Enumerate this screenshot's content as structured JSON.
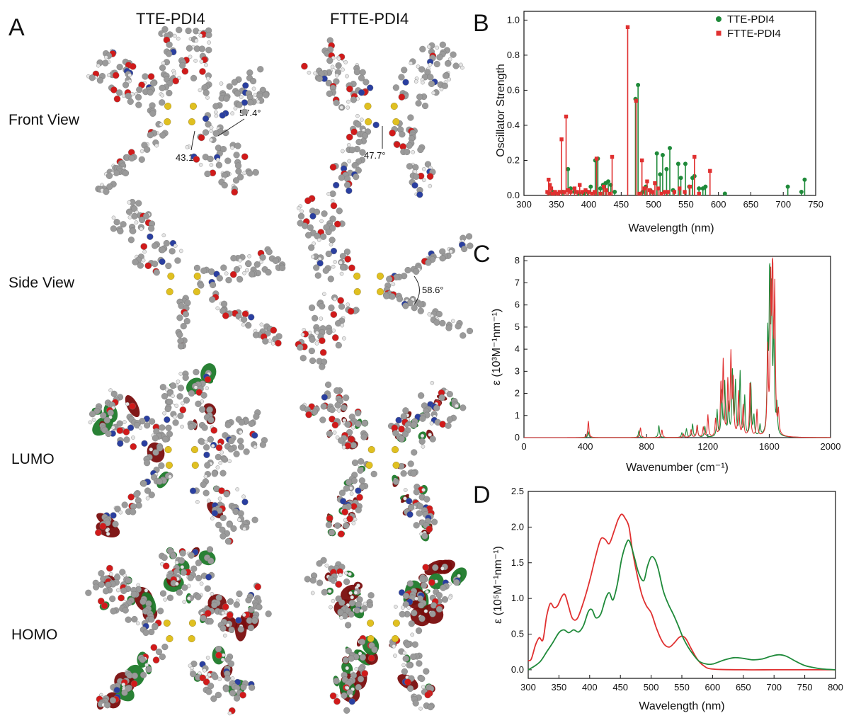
{
  "panel_a": {
    "letter": "A",
    "columns": [
      "TTE-PDI4",
      "FTTE-PDI4"
    ],
    "rows": [
      "Front View",
      "Side View",
      "LUMO",
      "HOMO"
    ],
    "angles": {
      "front_tte_1": "57.4°",
      "front_tte_2": "43.1°",
      "front_ftte": "47.7°",
      "side_ftte": "58.6°"
    },
    "colors": {
      "carbon": "#9a9a9a",
      "hydrogen": "#e6e6e6",
      "oxygen": "#d11a1a",
      "nitrogen": "#2a3fa0",
      "sulfur": "#e0c020",
      "orbital_pos": "#7a0d0d",
      "orbital_neg": "#1d7a2a"
    }
  },
  "chart_data": [
    {
      "panel": "B",
      "type": "stem",
      "xlabel": "Wavelength (nm)",
      "ylabel": "Oscillator Strength",
      "xlim": [
        300,
        750
      ],
      "ylim": [
        0,
        1.05
      ],
      "xticks": [
        300,
        350,
        400,
        450,
        500,
        550,
        600,
        650,
        700,
        750
      ],
      "yticks": [
        0.0,
        0.2,
        0.4,
        0.6,
        0.8,
        1.0
      ],
      "series": [
        {
          "name": "TTE-PDI4",
          "color": "#1f8a3a",
          "marker": "circle",
          "points": [
            [
              340,
              0.01
            ],
            [
              345,
              0.02
            ],
            [
              350,
              0.01
            ],
            [
              360,
              0.02
            ],
            [
              368,
              0.15
            ],
            [
              372,
              0.04
            ],
            [
              378,
              0.02
            ],
            [
              385,
              0.01
            ],
            [
              392,
              0.01
            ],
            [
              398,
              0.02
            ],
            [
              403,
              0.05
            ],
            [
              410,
              0.2
            ],
            [
              414,
              0.21
            ],
            [
              418,
              0.04
            ],
            [
              422,
              0.06
            ],
            [
              426,
              0.07
            ],
            [
              430,
              0.08
            ],
            [
              434,
              0.06
            ],
            [
              440,
              0.02
            ],
            [
              472,
              0.55
            ],
            [
              476,
              0.63
            ],
            [
              483,
              0.02
            ],
            [
              488,
              0.05
            ],
            [
              495,
              0.03
            ],
            [
              505,
              0.24
            ],
            [
              510,
              0.12
            ],
            [
              514,
              0.23
            ],
            [
              520,
              0.15
            ],
            [
              525,
              0.27
            ],
            [
              530,
              0.03
            ],
            [
              538,
              0.18
            ],
            [
              542,
              0.1
            ],
            [
              549,
              0.18
            ],
            [
              555,
              0.05
            ],
            [
              560,
              0.1
            ],
            [
              563,
              0.11
            ],
            [
              570,
              0.04
            ],
            [
              576,
              0.04
            ],
            [
              580,
              0.05
            ],
            [
              610,
              0.01
            ],
            [
              707,
              0.05
            ],
            [
              728,
              0.02
            ],
            [
              733,
              0.09
            ]
          ]
        },
        {
          "name": "FTTE-PDI4",
          "color": "#e03030",
          "marker": "square",
          "points": [
            [
              336,
              0.02
            ],
            [
              338,
              0.09
            ],
            [
              340,
              0.06
            ],
            [
              342,
              0.04
            ],
            [
              345,
              0.01
            ],
            [
              348,
              0.02
            ],
            [
              352,
              0.01
            ],
            [
              355,
              0.02
            ],
            [
              358,
              0.32
            ],
            [
              362,
              0.02
            ],
            [
              365,
              0.45
            ],
            [
              368,
              0.03
            ],
            [
              372,
              0.02
            ],
            [
              378,
              0.04
            ],
            [
              382,
              0.02
            ],
            [
              386,
              0.06
            ],
            [
              390,
              0.02
            ],
            [
              395,
              0.03
            ],
            [
              400,
              0.02
            ],
            [
              405,
              0.01
            ],
            [
              409,
              0.02
            ],
            [
              412,
              0.21
            ],
            [
              418,
              0.01
            ],
            [
              423,
              0.05
            ],
            [
              427,
              0.03
            ],
            [
              432,
              0.01
            ],
            [
              436,
              0.22
            ],
            [
              460,
              0.96
            ],
            [
              473,
              0.54
            ],
            [
              478,
              0.01
            ],
            [
              482,
              0.2
            ],
            [
              486,
              0.04
            ],
            [
              490,
              0.08
            ],
            [
              494,
              0.03
            ],
            [
              498,
              0.02
            ],
            [
              502,
              0.07
            ],
            [
              507,
              0.04
            ],
            [
              512,
              0.01
            ],
            [
              517,
              0.02
            ],
            [
              522,
              0.02
            ],
            [
              532,
              0.02
            ],
            [
              540,
              0.04
            ],
            [
              548,
              0.02
            ],
            [
              556,
              0.05
            ],
            [
              563,
              0.22
            ],
            [
              570,
              0.01
            ],
            [
              587,
              0.14
            ]
          ]
        }
      ],
      "legend_position": "top-right"
    },
    {
      "panel": "C",
      "type": "line",
      "xlabel": "Wavenumber (cm⁻¹)",
      "ylabel": "ε (10³M⁻¹nm⁻¹)",
      "xlim": [
        0,
        2000
      ],
      "ylim": [
        0,
        8.2
      ],
      "xticks": [
        0,
        400,
        800,
        1200,
        1600,
        2000
      ],
      "yticks": [
        0,
        1,
        2,
        3,
        4,
        5,
        6,
        7,
        8
      ],
      "series": [
        {
          "name": "",
          "color": "#1f8a3a",
          "peaks": [
            [
              420,
              0.25
            ],
            [
              750,
              0.3
            ],
            [
              880,
              0.55
            ],
            [
              1030,
              0.2
            ],
            [
              1060,
              0.4
            ],
            [
              1100,
              0.6
            ],
            [
              1130,
              0.55
            ],
            [
              1180,
              0.5
            ],
            [
              1260,
              1.2
            ],
            [
              1290,
              2.0
            ],
            [
              1310,
              2.4
            ],
            [
              1335,
              1.5
            ],
            [
              1360,
              2.9
            ],
            [
              1380,
              2.4
            ],
            [
              1410,
              2.9
            ],
            [
              1440,
              1.8
            ],
            [
              1480,
              2.4
            ],
            [
              1500,
              0.9
            ],
            [
              1540,
              0.5
            ],
            [
              1590,
              4.2
            ],
            [
              1603,
              6.8
            ],
            [
              1615,
              6.0
            ],
            [
              1630,
              4.5
            ],
            [
              1650,
              1.3
            ]
          ]
        },
        {
          "name": "",
          "color": "#e03030",
          "peaks": [
            [
              420,
              0.75
            ],
            [
              760,
              0.45
            ],
            [
              900,
              0.35
            ],
            [
              1040,
              0.15
            ],
            [
              1090,
              0.35
            ],
            [
              1130,
              0.55
            ],
            [
              1170,
              0.45
            ],
            [
              1200,
              1.0
            ],
            [
              1250,
              0.8
            ],
            [
              1285,
              2.3
            ],
            [
              1300,
              3.3
            ],
            [
              1330,
              2.4
            ],
            [
              1350,
              3.6
            ],
            [
              1365,
              2.5
            ],
            [
              1400,
              2.0
            ],
            [
              1430,
              1.4
            ],
            [
              1475,
              2.5
            ],
            [
              1520,
              1.2
            ],
            [
              1590,
              3.8
            ],
            [
              1610,
              6.4
            ],
            [
              1622,
              7.7
            ],
            [
              1636,
              6.2
            ],
            [
              1660,
              1.0
            ]
          ]
        }
      ]
    },
    {
      "panel": "D",
      "type": "line",
      "xlabel": "Wavelength (nm)",
      "ylabel": "ε (10⁵M⁻¹nm⁻¹)",
      "xlim": [
        300,
        800
      ],
      "ylim": [
        -0.12,
        2.5
      ],
      "xticks": [
        300,
        350,
        400,
        450,
        500,
        550,
        600,
        650,
        700,
        750,
        800
      ],
      "yticks": [
        0.0,
        0.5,
        1.0,
        1.5,
        2.0,
        2.5
      ],
      "series": [
        {
          "name": "",
          "color": "#e03030",
          "points": [
            [
              300,
              0.13
            ],
            [
              305,
              0.15
            ],
            [
              312,
              0.35
            ],
            [
              318,
              0.45
            ],
            [
              324,
              0.42
            ],
            [
              330,
              0.75
            ],
            [
              336,
              0.93
            ],
            [
              342,
              0.87
            ],
            [
              348,
              0.9
            ],
            [
              355,
              1.03
            ],
            [
              360,
              1.05
            ],
            [
              366,
              0.88
            ],
            [
              372,
              0.72
            ],
            [
              380,
              0.72
            ],
            [
              390,
              0.95
            ],
            [
              400,
              1.25
            ],
            [
              410,
              1.6
            ],
            [
              418,
              1.83
            ],
            [
              425,
              1.83
            ],
            [
              432,
              1.77
            ],
            [
              440,
              1.95
            ],
            [
              446,
              2.1
            ],
            [
              452,
              2.18
            ],
            [
              458,
              2.12
            ],
            [
              464,
              2.0
            ],
            [
              470,
              1.65
            ],
            [
              478,
              1.3
            ],
            [
              485,
              1.05
            ],
            [
              492,
              0.9
            ],
            [
              500,
              0.8
            ],
            [
              508,
              0.6
            ],
            [
              515,
              0.45
            ],
            [
              522,
              0.35
            ],
            [
              530,
              0.32
            ],
            [
              538,
              0.38
            ],
            [
              545,
              0.45
            ],
            [
              551,
              0.47
            ],
            [
              557,
              0.43
            ],
            [
              565,
              0.3
            ],
            [
              575,
              0.15
            ],
            [
              585,
              0.06
            ],
            [
              600,
              0.01
            ],
            [
              650,
              0.0
            ],
            [
              700,
              0.0
            ],
            [
              750,
              0.0
            ],
            [
              800,
              0.0
            ]
          ]
        },
        {
          "name": "",
          "color": "#1f8a3a",
          "points": [
            [
              300,
              0.0
            ],
            [
              310,
              0.05
            ],
            [
              320,
              0.12
            ],
            [
              330,
              0.25
            ],
            [
              340,
              0.38
            ],
            [
              350,
              0.52
            ],
            [
              358,
              0.56
            ],
            [
              366,
              0.52
            ],
            [
              374,
              0.56
            ],
            [
              382,
              0.53
            ],
            [
              390,
              0.62
            ],
            [
              398,
              0.82
            ],
            [
              404,
              0.84
            ],
            [
              410,
              0.73
            ],
            [
              418,
              0.78
            ],
            [
              426,
              1.0
            ],
            [
              432,
              1.08
            ],
            [
              438,
              0.98
            ],
            [
              445,
              1.2
            ],
            [
              452,
              1.55
            ],
            [
              460,
              1.78
            ],
            [
              465,
              1.8
            ],
            [
              472,
              1.6
            ],
            [
              480,
              1.35
            ],
            [
              488,
              1.25
            ],
            [
              494,
              1.45
            ],
            [
              500,
              1.58
            ],
            [
              506,
              1.55
            ],
            [
              512,
              1.4
            ],
            [
              520,
              1.1
            ],
            [
              528,
              0.92
            ],
            [
              536,
              0.78
            ],
            [
              544,
              0.62
            ],
            [
              552,
              0.45
            ],
            [
              560,
              0.32
            ],
            [
              568,
              0.22
            ],
            [
              578,
              0.12
            ],
            [
              590,
              0.08
            ],
            [
              600,
              0.08
            ],
            [
              610,
              0.11
            ],
            [
              620,
              0.14
            ],
            [
              635,
              0.17
            ],
            [
              650,
              0.16
            ],
            [
              665,
              0.14
            ],
            [
              680,
              0.15
            ],
            [
              695,
              0.19
            ],
            [
              708,
              0.21
            ],
            [
              720,
              0.19
            ],
            [
              735,
              0.12
            ],
            [
              750,
              0.06
            ],
            [
              765,
              0.03
            ],
            [
              780,
              0.01
            ],
            [
              800,
              0.0
            ]
          ]
        }
      ]
    }
  ]
}
